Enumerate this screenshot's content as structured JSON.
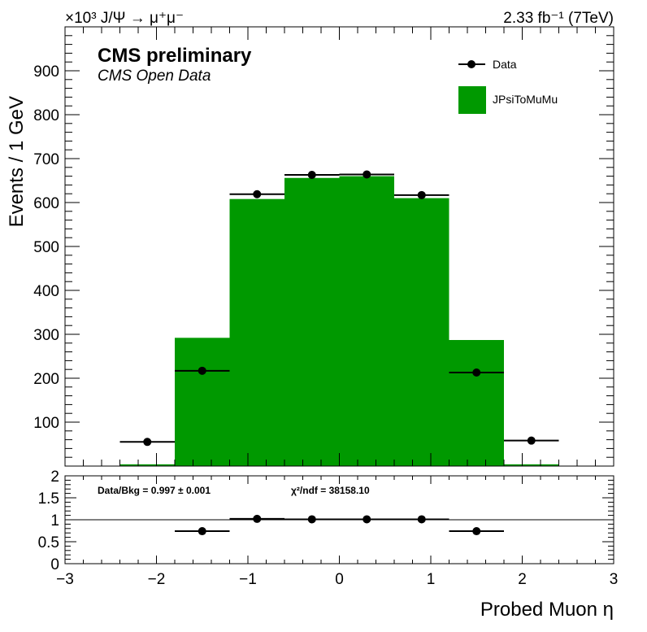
{
  "chart_data": [
    {
      "type": "bar",
      "panel": "main",
      "top_left_label": "×10³ J/Ψ → μ⁺μ⁻",
      "lumi_label": "2.33 fb⁻¹ (7TeV)",
      "experiment_label": "CMS preliminary",
      "sub_label": "CMS Open Data",
      "ylabel": "Events / 1 GeV",
      "xlabel": "",
      "xlim": [
        -3,
        3
      ],
      "ylim": [
        0,
        1000
      ],
      "yticks": [
        "100",
        "200",
        "300",
        "400",
        "500",
        "600",
        "700",
        "800",
        "900"
      ],
      "bin_edges": [
        -3,
        -2.4,
        -1.8,
        -1.2,
        -0.6,
        0,
        0.6,
        1.2,
        1.8,
        2.4,
        3
      ],
      "series": [
        {
          "name": "JPsiToMuMu",
          "kind": "histogram",
          "color": "#009900",
          "values": [
            0,
            4,
            292,
            608,
            656,
            660,
            610,
            287,
            4,
            0
          ]
        },
        {
          "name": "Data",
          "kind": "points",
          "color": "#000000",
          "x": [
            -2.1,
            -1.5,
            -0.9,
            -0.3,
            0.3,
            0.9,
            1.5,
            2.1
          ],
          "y": [
            55,
            217,
            619,
            663,
            664,
            617,
            213,
            58
          ],
          "xerr": 0.3
        }
      ],
      "legend": {
        "position": "top-right",
        "entries": [
          "Data",
          "JPsiToMuMu"
        ]
      },
      "grid": false
    },
    {
      "type": "scatter",
      "panel": "ratio",
      "xlabel": "Probed Muon η",
      "ylabel": "",
      "xlim": [
        -3,
        3
      ],
      "ylim": [
        0,
        2
      ],
      "xticks": [
        "−3",
        "−2",
        "−1",
        "0",
        "1",
        "2",
        "3"
      ],
      "yticks": [
        "0",
        "0.5",
        "1",
        "1.5",
        "2"
      ],
      "reference_line": 1,
      "ratio_label": "Data/Bkg = 0.997 ± 0.001",
      "chi2_label": "χ²/ndf = 38158.10",
      "series": [
        {
          "name": "Data/Bkg",
          "color": "#000000",
          "x": [
            -1.5,
            -0.9,
            -0.3,
            0.3,
            0.9,
            1.5
          ],
          "y": [
            0.74,
            1.02,
            1.01,
            1.01,
            1.01,
            0.74
          ],
          "xerr": 0.3
        }
      ]
    }
  ]
}
